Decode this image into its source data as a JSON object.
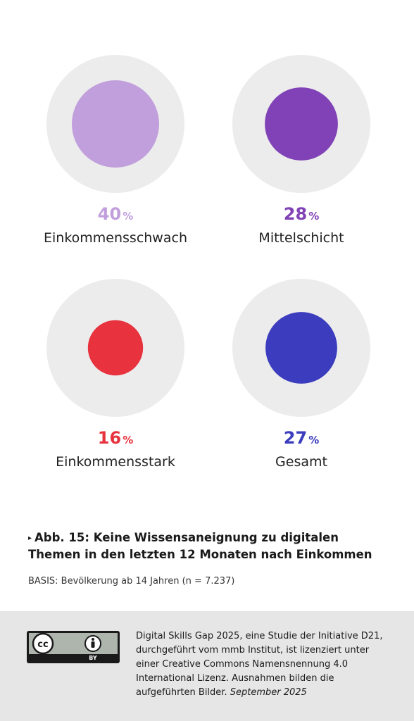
{
  "chart_data": {
    "type": "bubble",
    "title": "Abb. 15: Keine Wissensaneignung zu digitalen Themen in den letzten 12 Monaten nach Einkommen",
    "unit": "%",
    "categories": [
      "Einkommensschwach",
      "Mittelschicht",
      "Einkommensstark",
      "Gesamt"
    ],
    "values": [
      40,
      28,
      16,
      27
    ],
    "colors": [
      "#c19fdc",
      "#8042b6",
      "#e8323e",
      "#3b3cbe"
    ],
    "background_circle_color": "#ececec"
  },
  "items": [
    {
      "value": "40",
      "unit": "%",
      "label": "Einkommensschwach"
    },
    {
      "value": "28",
      "unit": "%",
      "label": "Mittelschicht"
    },
    {
      "value": "16",
      "unit": "%",
      "label": "Einkommensstark"
    },
    {
      "value": "27",
      "unit": "%",
      "label": "Gesamt"
    }
  ],
  "caption": {
    "marker": "▸",
    "text": "Abb. 15: Keine Wissensaneignung zu digitalen Themen in den letzten 12 Monaten nach Einkommen"
  },
  "basis": "BASIS: Bevölkerung ab 14 Jahren (n = 7.237)",
  "footer": {
    "license_badge": {
      "icon": "creative-commons-by-icon",
      "text": "BY"
    },
    "text": "Digital Skills Gap 2025, eine Studie der Initiative D21, durchgeführt vom mmb Institut, ist lizenziert unter einer Creative Commons Namensnennung 4.0 International Lizenz. Ausnahmen bilden die aufgeführten Bilder.",
    "date": "September 2025"
  }
}
